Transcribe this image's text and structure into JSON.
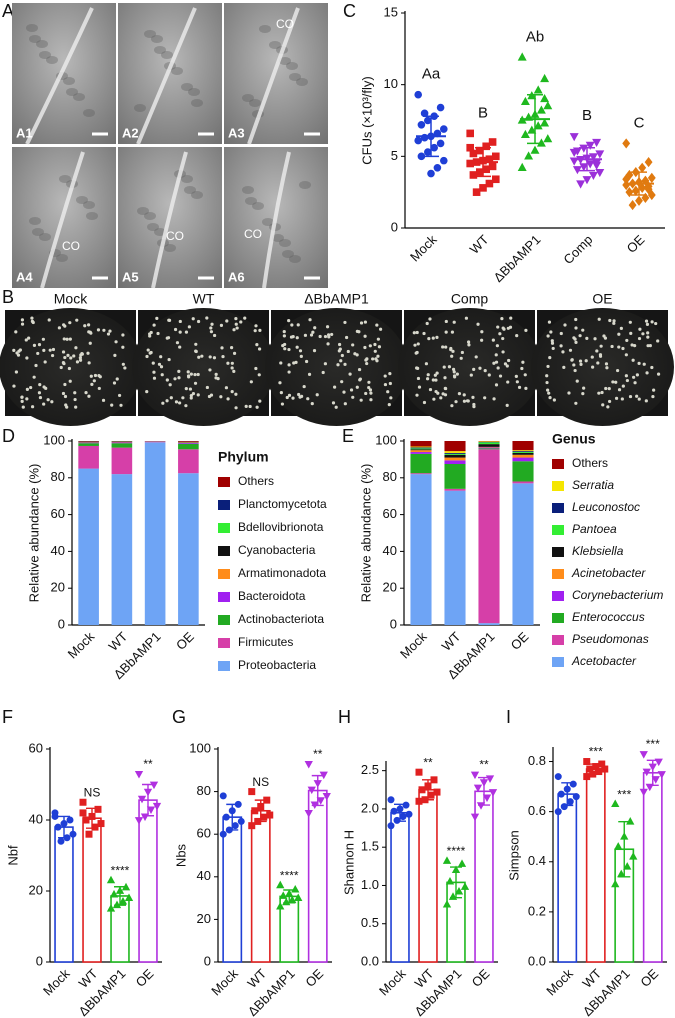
{
  "figure": {
    "sem": {
      "panel": "A",
      "images": [
        {
          "label": "A1"
        },
        {
          "label": "A2"
        },
        {
          "label": "A3",
          "annotation": "CO"
        },
        {
          "label": "A4",
          "annotation": "CO"
        },
        {
          "label": "A5",
          "annotation": "CO"
        },
        {
          "label": "A6",
          "annotation": "CO"
        }
      ]
    },
    "plates": {
      "panel": "B",
      "labels": [
        "Mock",
        "WT",
        "ΔBbAMP1",
        "Comp",
        "OE"
      ]
    }
  },
  "chart_data": [
    {
      "type": "dot",
      "panel": "C",
      "y_label": "CFUs (×10³/fly)",
      "categories": [
        "Mock",
        "WT",
        "ΔBbAMP1",
        "Comp",
        "OE"
      ],
      "ylim": [
        0,
        15
      ],
      "yticks": [
        0,
        5,
        10,
        15
      ],
      "letters": [
        "Aa",
        "B",
        "Ab",
        "B",
        "C"
      ],
      "groups": [
        {
          "color": "#1f3fd6",
          "marker": "circle",
          "mean": 6.4,
          "sd": 1.4,
          "points": [
            9.3,
            8.4,
            7.8,
            7.5,
            7.2,
            6.9,
            6.6,
            6.4,
            6.3,
            6.1,
            5.9,
            5.6,
            5.3,
            5.0,
            4.7,
            4.2,
            3.8,
            8.0
          ]
        },
        {
          "color": "#e02020",
          "marker": "square",
          "mean": 4.6,
          "sd": 1.0,
          "points": [
            6.6,
            6.0,
            5.7,
            5.4,
            5.2,
            5.0,
            4.8,
            4.7,
            4.6,
            4.5,
            4.3,
            4.1,
            3.9,
            3.7,
            3.4,
            3.1,
            2.8,
            2.5,
            5.6
          ]
        },
        {
          "color": "#1fb81f",
          "marker": "triangle",
          "mean": 7.6,
          "sd": 1.7,
          "points": [
            11.9,
            10.4,
            9.6,
            9.2,
            8.8,
            8.5,
            8.2,
            7.9,
            7.7,
            7.5,
            7.3,
            7.1,
            6.8,
            6.5,
            6.2,
            5.9,
            5.4,
            5.0,
            4.2,
            9.0
          ]
        },
        {
          "color": "#9b30d9",
          "marker": "inv-triangle",
          "mean": 4.8,
          "sd": 0.8,
          "points": [
            6.4,
            6.0,
            5.8,
            5.6,
            5.4,
            5.2,
            5.0,
            4.9,
            4.8,
            4.7,
            4.6,
            4.5,
            4.3,
            4.1,
            3.9,
            3.7,
            3.4,
            3.1,
            5.3,
            4.4
          ]
        },
        {
          "color": "#e07a10",
          "marker": "diamond",
          "mean": 3.1,
          "sd": 0.8,
          "points": [
            5.9,
            4.6,
            4.2,
            3.9,
            3.7,
            3.5,
            3.3,
            3.2,
            3.1,
            3.0,
            2.9,
            2.8,
            2.6,
            2.5,
            2.3,
            2.1,
            1.9,
            1.6,
            3.4,
            2.7
          ]
        }
      ]
    },
    {
      "type": "stacked_bar",
      "panel": "D",
      "y_label": "Relative abundance (%)",
      "legend_title": "Phylum",
      "legend": "right",
      "categories": [
        "Mock",
        "WT",
        "ΔBbAMP1",
        "OE"
      ],
      "ylim": [
        0,
        100
      ],
      "yticks": [
        0,
        20,
        40,
        60,
        80,
        100
      ],
      "series": [
        {
          "name": "Proteobacteria",
          "color": "#6ea4f5",
          "values": [
            85.0,
            82.0,
            99.3,
            82.5
          ]
        },
        {
          "name": "Firmicutes",
          "color": "#d63fa8",
          "values": [
            12.3,
            14.4,
            0.4,
            13.0
          ]
        },
        {
          "name": "Actinobacteriota",
          "color": "#22aa22",
          "values": [
            1.5,
            2.4,
            0.1,
            3.0
          ]
        },
        {
          "name": "Bacteroidota",
          "color": "#a020f0",
          "values": [
            0.3,
            0.4,
            0.05,
            0.5
          ]
        },
        {
          "name": "Armatimonadota",
          "color": "#ff8c1a",
          "values": [
            0.2,
            0.2,
            0.03,
            0.2
          ]
        },
        {
          "name": "Cyanobacteria",
          "color": "#111111",
          "values": [
            0.2,
            0.2,
            0.03,
            0.2
          ]
        },
        {
          "name": "Bdellovibrionota",
          "color": "#33ee33",
          "values": [
            0.1,
            0.1,
            0.02,
            0.1
          ]
        },
        {
          "name": "Planctomycetota",
          "color": "#0a1f7a",
          "values": [
            0.1,
            0.1,
            0.02,
            0.1
          ]
        },
        {
          "name": "Others",
          "color": "#a00000",
          "values": [
            0.3,
            0.2,
            0.05,
            0.4
          ]
        }
      ]
    },
    {
      "type": "stacked_bar",
      "panel": "E",
      "y_label": "Relative abundance (%)",
      "legend_title": "Genus",
      "legend": "right",
      "categories": [
        "Mock",
        "WT",
        "ΔBbAMP1",
        "OE"
      ],
      "ylim": [
        0,
        100
      ],
      "yticks": [
        0,
        20,
        40,
        60,
        80,
        100
      ],
      "series": [
        {
          "name": "Acetobacter",
          "italic": true,
          "color": "#6ea4f5",
          "values": [
            82,
            73,
            1,
            77
          ]
        },
        {
          "name": "Pseudomonas",
          "italic": true,
          "color": "#d63fa8",
          "values": [
            0.5,
            1,
            94.5,
            1
          ]
        },
        {
          "name": "Enterococcus",
          "italic": true,
          "color": "#22aa22",
          "values": [
            10.5,
            13.5,
            0.5,
            11
          ]
        },
        {
          "name": "Corynebacterium",
          "italic": true,
          "color": "#a020f0",
          "values": [
            1,
            2,
            0.5,
            2
          ]
        },
        {
          "name": "Acinetobacter",
          "italic": true,
          "color": "#ff8c1a",
          "values": [
            1,
            1.5,
            0.3,
            1.5
          ]
        },
        {
          "name": "Klebsiella",
          "italic": true,
          "color": "#111111",
          "values": [
            0.5,
            1.5,
            1.5,
            1
          ]
        },
        {
          "name": "Pantoea",
          "italic": true,
          "color": "#33ee33",
          "values": [
            0.5,
            0.5,
            1,
            0.5
          ]
        },
        {
          "name": "Leuconostoc",
          "italic": true,
          "color": "#0a1f7a",
          "values": [
            0.5,
            0.5,
            0.2,
            0.5
          ]
        },
        {
          "name": "Serratia",
          "italic": true,
          "color": "#f5e600",
          "values": [
            0.5,
            1,
            0.3,
            0.5
          ]
        },
        {
          "name": "Others",
          "color": "#a00000",
          "values": [
            3,
            5.5,
            0.2,
            5
          ]
        }
      ]
    },
    {
      "type": "bar_dot",
      "panel": "F",
      "y_label": "Nbf",
      "categories": [
        "Mock",
        "WT",
        "ΔBbAMP1",
        "OE"
      ],
      "ylim": [
        0,
        60
      ],
      "yticks": [
        0,
        20,
        40,
        60
      ],
      "annotations": [
        null,
        "NS",
        "****",
        "**"
      ],
      "groups": [
        {
          "color": "#1f3fd6",
          "marker": "circle",
          "mean": 38,
          "sd": 3,
          "points": [
            42,
            40,
            39,
            38,
            36,
            35,
            34,
            41
          ]
        },
        {
          "color": "#e02020",
          "marker": "square",
          "mean": 40.5,
          "sd": 2.8,
          "points": [
            45,
            43,
            41,
            40,
            39,
            38,
            36,
            42
          ]
        },
        {
          "color": "#1fb81f",
          "marker": "triangle",
          "mean": 18.6,
          "sd": 2.6,
          "points": [
            23,
            21,
            20,
            19,
            18,
            17,
            16,
            15
          ]
        },
        {
          "color": "#b030e0",
          "marker": "inv-triangle",
          "mean": 45.6,
          "sd": 4.4,
          "points": [
            53,
            50,
            48,
            46,
            44,
            43,
            41,
            40
          ]
        }
      ]
    },
    {
      "type": "bar_dot",
      "panel": "G",
      "y_label": "Nbs",
      "categories": [
        "Mock",
        "WT",
        "ΔBbAMP1",
        "OE"
      ],
      "ylim": [
        0,
        100
      ],
      "yticks": [
        0,
        20,
        40,
        60,
        80,
        100
      ],
      "annotations": [
        null,
        "NS",
        "****",
        "**"
      ],
      "groups": [
        {
          "color": "#1f3fd6",
          "marker": "circle",
          "mean": 68,
          "sd": 6,
          "points": [
            78,
            74,
            71,
            68,
            66,
            64,
            62,
            60
          ]
        },
        {
          "color": "#e02020",
          "marker": "square",
          "mean": 71,
          "sd": 5,
          "points": [
            80,
            76,
            73,
            71,
            69,
            68,
            66,
            64
          ]
        },
        {
          "color": "#1fb81f",
          "marker": "triangle",
          "mean": 30.8,
          "sd": 3,
          "points": [
            36,
            34,
            32,
            31,
            30,
            29,
            28,
            26
          ]
        },
        {
          "color": "#b030e0",
          "marker": "inv-triangle",
          "mean": 80.5,
          "sd": 7,
          "points": [
            93,
            88,
            84,
            81,
            78,
            76,
            74,
            70
          ]
        }
      ]
    },
    {
      "type": "bar_dot",
      "panel": "H",
      "y_label": "Shannon H",
      "categories": [
        "Mock",
        "WT",
        "ΔBbAMP1",
        "OE"
      ],
      "ylim": [
        0,
        2.6
      ],
      "yticks": [
        {
          "value": 0,
          "label": "0.0"
        },
        0.5,
        {
          "value": 1,
          "label": "1.0"
        },
        1.5,
        {
          "value": 2,
          "label": "2.0"
        },
        2.5
      ],
      "annotations": [
        null,
        "**",
        "****",
        "**"
      ],
      "groups": [
        {
          "color": "#1f3fd6",
          "marker": "circle",
          "mean": 1.95,
          "sd": 0.11,
          "points": [
            2.12,
            2.05,
            2.0,
            1.97,
            1.93,
            1.9,
            1.85,
            1.78
          ]
        },
        {
          "color": "#e02020",
          "marker": "square",
          "mean": 2.25,
          "sd": 0.13,
          "points": [
            2.48,
            2.38,
            2.3,
            2.25,
            2.22,
            2.18,
            2.12,
            2.1
          ]
        },
        {
          "color": "#1fb81f",
          "marker": "triangle",
          "mean": 1.04,
          "sd": 0.2,
          "points": [
            1.32,
            1.28,
            1.2,
            1.05,
            0.98,
            0.92,
            0.85,
            0.75
          ]
        },
        {
          "color": "#b030e0",
          "marker": "inv-triangle",
          "mean": 2.23,
          "sd": 0.18,
          "points": [
            2.45,
            2.4,
            2.35,
            2.28,
            2.22,
            2.15,
            2.05,
            1.9
          ]
        }
      ]
    },
    {
      "type": "bar_dot",
      "panel": "I",
      "y_label": "Simpson",
      "categories": [
        "Mock",
        "WT",
        "ΔBbAMP1",
        "OE"
      ],
      "ylim": [
        0,
        0.85
      ],
      "yticks": [
        {
          "value": 0,
          "label": "0.0"
        },
        0.2,
        0.4,
        0.6,
        0.8
      ],
      "annotations": [
        "***",
        "***",
        "***"
      ],
      "annotation_categories": [
        1,
        2,
        3
      ],
      "groups": [
        {
          "color": "#1f3fd6",
          "marker": "circle",
          "mean": 0.67,
          "sd": 0.045,
          "points": [
            0.74,
            0.71,
            0.69,
            0.67,
            0.66,
            0.64,
            0.62,
            0.6
          ]
        },
        {
          "color": "#e02020",
          "marker": "square",
          "mean": 0.77,
          "sd": 0.02,
          "points": [
            0.8,
            0.79,
            0.78,
            0.77,
            0.77,
            0.76,
            0.75,
            0.74
          ]
        },
        {
          "color": "#1fb81f",
          "marker": "triangle",
          "mean": 0.45,
          "sd": 0.11,
          "points": [
            0.63,
            0.56,
            0.5,
            0.46,
            0.42,
            0.38,
            0.35,
            0.31
          ]
        },
        {
          "color": "#b030e0",
          "marker": "inv-triangle",
          "mean": 0.755,
          "sd": 0.05,
          "points": [
            0.83,
            0.8,
            0.78,
            0.76,
            0.75,
            0.73,
            0.7,
            0.68
          ]
        }
      ]
    }
  ]
}
